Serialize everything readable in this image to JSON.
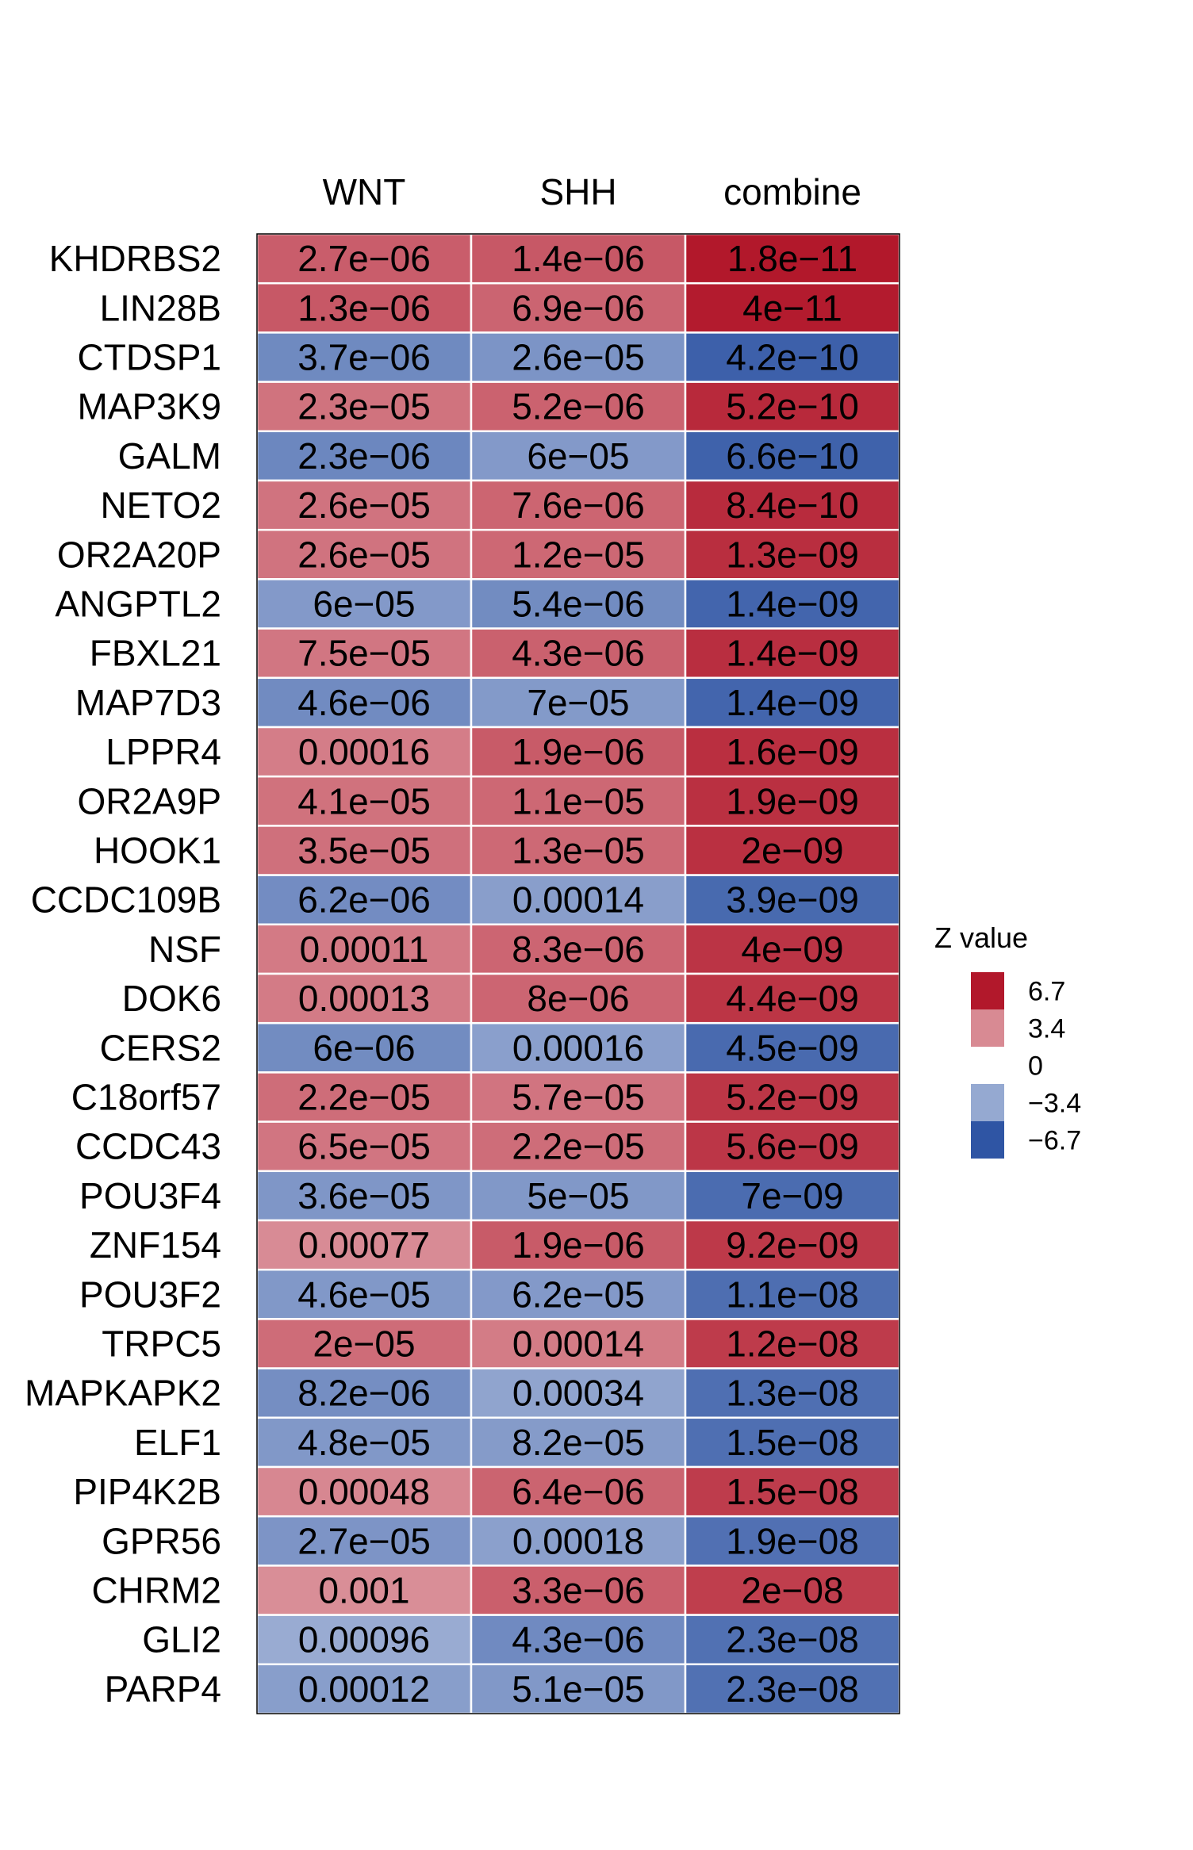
{
  "chart_data": {
    "type": "heatmap",
    "columns": [
      "WNT",
      "SHH",
      "combine"
    ],
    "rows": [
      "KHDRBS2",
      "LIN28B",
      "CTDSP1",
      "MAP3K9",
      "GALM",
      "NETO2",
      "OR2A20P",
      "ANGPTL2",
      "FBXL21",
      "MAP7D3",
      "LPPR4",
      "OR2A9P",
      "HOOK1",
      "CCDC109B",
      "NSF",
      "DOK6",
      "CERS2",
      "C18orf57",
      "CCDC43",
      "POU3F4",
      "ZNF154",
      "POU3F2",
      "TRPC5",
      "MAPKAPK2",
      "ELF1",
      "PIP4K2B",
      "GPR56",
      "CHRM2",
      "GLI2",
      "PARP4"
    ],
    "labels": [
      [
        "2.7e−06",
        "1.4e−06",
        "1.8e−11"
      ],
      [
        "1.3e−06",
        "6.9e−06",
        "4e−11"
      ],
      [
        "3.7e−06",
        "2.6e−05",
        "4.2e−10"
      ],
      [
        "2.3e−05",
        "5.2e−06",
        "5.2e−10"
      ],
      [
        "2.3e−06",
        "6e−05",
        "6.6e−10"
      ],
      [
        "2.6e−05",
        "7.6e−06",
        "8.4e−10"
      ],
      [
        "2.6e−05",
        "1.2e−05",
        "1.3e−09"
      ],
      [
        "6e−05",
        "5.4e−06",
        "1.4e−09"
      ],
      [
        "7.5e−05",
        "4.3e−06",
        "1.4e−09"
      ],
      [
        "4.6e−06",
        "7e−05",
        "1.4e−09"
      ],
      [
        "0.00016",
        "1.9e−06",
        "1.6e−09"
      ],
      [
        "4.1e−05",
        "1.1e−05",
        "1.9e−09"
      ],
      [
        "3.5e−05",
        "1.3e−05",
        "2e−09"
      ],
      [
        "6.2e−06",
        "0.00014",
        "3.9e−09"
      ],
      [
        "0.00011",
        "8.3e−06",
        "4e−09"
      ],
      [
        "0.00013",
        "8e−06",
        "4.4e−09"
      ],
      [
        "6e−06",
        "0.00016",
        "4.5e−09"
      ],
      [
        "2.2e−05",
        "5.7e−05",
        "5.2e−09"
      ],
      [
        "6.5e−05",
        "2.2e−05",
        "5.6e−09"
      ],
      [
        "3.6e−05",
        "5e−05",
        "7e−09"
      ],
      [
        "0.00077",
        "1.9e−06",
        "9.2e−09"
      ],
      [
        "4.6e−05",
        "6.2e−05",
        "1.1e−08"
      ],
      [
        "2e−05",
        "0.00014",
        "1.2e−08"
      ],
      [
        "8.2e−06",
        "0.00034",
        "1.3e−08"
      ],
      [
        "4.8e−05",
        "8.2e−05",
        "1.5e−08"
      ],
      [
        "0.00048",
        "6.4e−06",
        "1.5e−08"
      ],
      [
        "2.7e−05",
        "0.00018",
        "1.9e−08"
      ],
      [
        "0.001",
        "3.3e−06",
        "2e−08"
      ],
      [
        "0.00096",
        "4.3e−06",
        "2.3e−08"
      ],
      [
        "0.00012",
        "5.1e−05",
        "2.3e−08"
      ]
    ],
    "z_values": [
      [
        4.69,
        4.83,
        6.73
      ],
      [
        4.84,
        4.49,
        6.61
      ],
      [
        -4.63,
        -4.21,
        -6.25
      ],
      [
        4.07,
        4.56,
        6.21
      ],
      [
        -4.72,
        -4.01,
        -6.17
      ],
      [
        4.05,
        4.48,
        6.14
      ],
      [
        4.05,
        4.38,
        6.07
      ],
      [
        -4.01,
        -4.54,
        -6.05
      ],
      [
        3.96,
        4.59,
        6.05
      ],
      [
        -4.58,
        -3.98,
        -6.05
      ],
      [
        3.77,
        4.76,
        6.03
      ],
      [
        4.1,
        4.39,
        6.0
      ],
      [
        4.14,
        4.36,
        5.99
      ],
      [
        -4.52,
        -3.81,
        -5.89
      ],
      [
        3.86,
        4.46,
        5.89
      ],
      [
        3.82,
        4.47,
        5.87
      ],
      [
        -4.53,
        -3.77,
        -5.86
      ],
      [
        4.24,
        4.02,
        5.84
      ],
      [
        3.99,
        4.24,
        5.83
      ],
      [
        -4.13,
        -4.05,
        -5.79
      ],
      [
        3.36,
        4.76,
        5.74
      ],
      [
        -4.07,
        -4.01,
        -5.71
      ],
      [
        4.27,
        3.81,
        5.69
      ],
      [
        -4.46,
        -3.58,
        -5.68
      ],
      [
        -4.06,
        -3.94,
        -5.66
      ],
      [
        3.49,
        4.51,
        5.66
      ],
      [
        -4.2,
        -3.74,
        -5.62
      ],
      [
        3.29,
        4.65,
        5.61
      ],
      [
        -3.3,
        -4.6,
        -5.59
      ],
      [
        -3.84,
        -4.05,
        -5.59
      ]
    ],
    "legend": {
      "title": "Z value",
      "ticks": [
        "6.7",
        "3.4",
        "0",
        "−3.4",
        "−6.7"
      ],
      "tick_values": [
        6.7,
        3.4,
        0,
        -3.4,
        -6.7
      ],
      "placement": "right"
    },
    "colors": {
      "high": "#b2182b",
      "mid": "#ffffff",
      "low": "#2f55a4",
      "grid": "#ffffff",
      "border": "#000000"
    },
    "zlim": [
      -6.7,
      6.7
    ]
  }
}
